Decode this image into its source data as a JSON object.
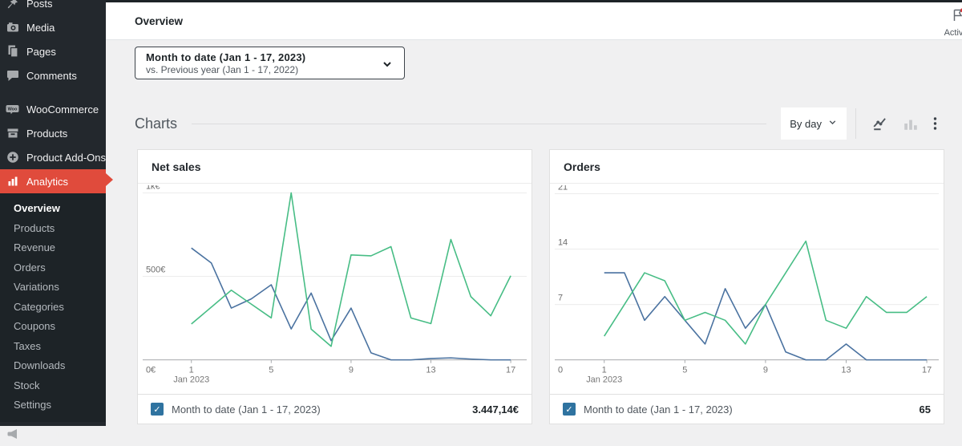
{
  "sidebar": {
    "menu": [
      "Posts",
      "Media",
      "Pages",
      "Comments",
      "WooCommerce",
      "Products",
      "Product Add-Ons",
      "Analytics"
    ],
    "submenu": [
      "Overview",
      "Products",
      "Revenue",
      "Orders",
      "Variations",
      "Categories",
      "Coupons",
      "Taxes",
      "Downloads",
      "Stock",
      "Settings"
    ],
    "bottom_item": "Marketing",
    "active_item": "Analytics",
    "active_subitem": "Overview"
  },
  "header": {
    "title": "Overview",
    "activity_label": "Activity"
  },
  "date_range": {
    "primary": "Month to date (Jan 1 - 17, 2023)",
    "secondary": "vs. Previous year (Jan 1 - 17, 2022)"
  },
  "charts_section": {
    "title": "Charts",
    "interval_label": "By day"
  },
  "icons": {
    "activity": "flag-with-red-notification-dot",
    "interval": "chevron-down",
    "chart_type_line": "line-chart (selected)",
    "chart_type_bar": "bar-chart (disabled)",
    "more": "kebab-menu"
  },
  "colors": {
    "sidebar_bg": "#23282d",
    "submenu_bg": "#1d2327",
    "accent_red": "#e04b3c",
    "current_period_line": "#4a72a0",
    "previous_period_line": "#47bd85",
    "legend_checkbox": "#2f73a0",
    "notification_dot": "#d63638"
  },
  "chart_data": [
    {
      "type": "line",
      "title": "Net sales",
      "x_note": "Jan 2023",
      "xticks": [
        1,
        5,
        9,
        13,
        17
      ],
      "ylim": [
        0,
        1000
      ],
      "yticks": [
        {
          "label": "0€",
          "value": 0
        },
        {
          "label": "500€",
          "value": 500
        },
        {
          "label": "1k€",
          "value": 1000
        }
      ],
      "series": [
        {
          "name": "Month to date (Jan 1 - 17, 2023)",
          "color": "#4a72a0",
          "values": [
            670,
            580,
            310,
            365,
            450,
            185,
            400,
            115,
            310,
            42,
            0,
            0,
            8,
            12,
            5,
            0,
            0
          ]
        },
        {
          "name": "Previous year (Jan 1 - 17, 2022)",
          "color": "#47bd85",
          "values": [
            215,
            316,
            417,
            334,
            251,
            1000,
            184,
            81,
            628,
            623,
            678,
            251,
            217,
            721,
            379,
            264,
            504
          ]
        }
      ],
      "legend": {
        "label": "Month to date (Jan 1 - 17, 2023)",
        "total": "3.447,14€"
      }
    },
    {
      "type": "line",
      "title": "Orders",
      "x_note": "Jan 2023",
      "xticks": [
        1,
        5,
        9,
        13,
        17
      ],
      "ylim": [
        0,
        21
      ],
      "yticks": [
        {
          "label": "0",
          "value": 0
        },
        {
          "label": "7",
          "value": 7
        },
        {
          "label": "14",
          "value": 14
        },
        {
          "label": "21",
          "value": 21
        }
      ],
      "series": [
        {
          "name": "Month to date (Jan 1 - 17, 2023)",
          "color": "#4a72a0",
          "values": [
            11,
            11,
            5,
            8,
            5,
            2,
            9,
            4,
            7,
            1,
            0,
            0,
            2,
            0,
            0,
            0,
            0
          ]
        },
        {
          "name": "Previous year (Jan 1 - 17, 2022)",
          "color": "#47bd85",
          "values": [
            3,
            7,
            11,
            10,
            5,
            6,
            5,
            2,
            7,
            11,
            15,
            5,
            4,
            8,
            6,
            6,
            8
          ]
        }
      ],
      "legend": {
        "label": "Month to date (Jan 1 - 17, 2023)",
        "total": "65"
      }
    }
  ]
}
